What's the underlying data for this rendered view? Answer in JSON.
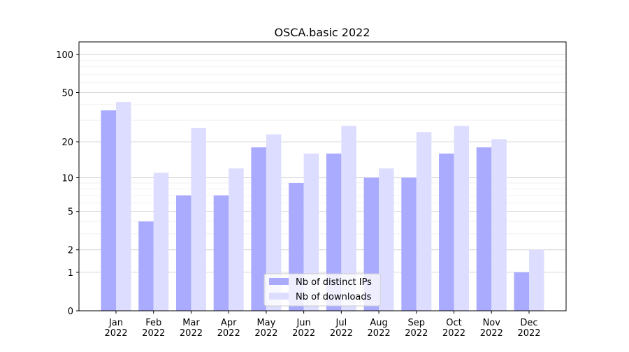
{
  "chart_data": {
    "type": "bar",
    "title": "OSCA.basic 2022",
    "xlabel": "",
    "ylabel": "",
    "yscale": "log(1+y)",
    "ylim": [
      0,
      126
    ],
    "yticks": [
      0,
      1,
      2,
      5,
      10,
      20,
      50,
      100
    ],
    "ytick_labels": [
      "0",
      "1",
      "2",
      "5",
      "10",
      "20",
      "50",
      "100"
    ],
    "categories": [
      "Jan\n2022",
      "Feb\n2022",
      "Mar\n2022",
      "Apr\n2022",
      "May\n2022",
      "Jun\n2022",
      "Jul\n2022",
      "Aug\n2022",
      "Sep\n2022",
      "Oct\n2022",
      "Nov\n2022",
      "Dec\n2022"
    ],
    "series": [
      {
        "name": "Nb of distinct IPs",
        "color": "#aaaaff",
        "values": [
          36,
          4,
          7,
          7,
          18,
          9,
          16,
          10,
          10,
          16,
          18,
          1
        ]
      },
      {
        "name": "Nb of downloads",
        "color": "#ddddff",
        "values": [
          42,
          11,
          26,
          12,
          23,
          16,
          27,
          12,
          24,
          27,
          21,
          2
        ]
      }
    ],
    "grid": true,
    "legend_position": "bottom-center"
  }
}
